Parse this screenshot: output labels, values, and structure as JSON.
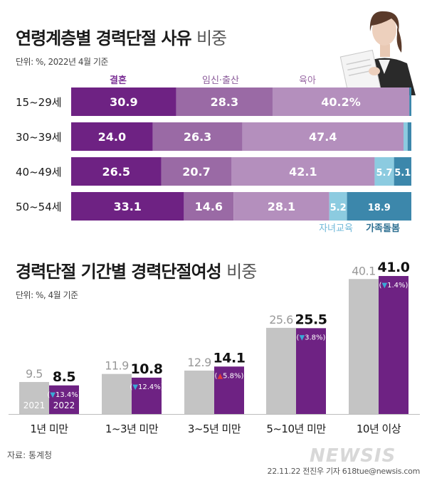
{
  "chart_data": [
    {
      "type": "bar",
      "orientation": "horizontal",
      "stacked": true,
      "percent": true,
      "title_main": "연령계층별 경력단절 사유",
      "title_light": "비중",
      "unit_note": "단위: %, 2022년 4월 기준",
      "categories": [
        "15~29세",
        "30~39세",
        "40~49세",
        "50~54세"
      ],
      "series": [
        {
          "name": "결혼",
          "color": "#6e2283",
          "values": [
            30.9,
            24.0,
            26.5,
            33.1
          ],
          "labels": [
            "30.9",
            "24.0",
            "26.5",
            "33.1"
          ]
        },
        {
          "name": "임신·출산",
          "color": "#9a6aa5",
          "values": [
            28.3,
            26.3,
            20.7,
            14.6
          ],
          "labels": [
            "28.3",
            "26.3",
            "20.7",
            "14.6"
          ]
        },
        {
          "name": "육아",
          "color": "#b48fbd",
          "values": [
            40.2,
            47.4,
            42.1,
            28.1
          ],
          "labels": [
            "40.2%",
            "47.4",
            "42.1",
            "28.1"
          ]
        },
        {
          "name": "자녀교육",
          "color": "#8ccbe0",
          "values": [
            0.0,
            1.2,
            5.7,
            5.2
          ],
          "labels": [
            "",
            "",
            "5.7",
            "5.2"
          ]
        },
        {
          "name": "가족돌봄",
          "color": "#3c87ab",
          "values": [
            0.6,
            1.1,
            5.1,
            18.9
          ],
          "labels": [
            "",
            "",
            "5.1",
            "18.9"
          ]
        }
      ],
      "legend_top": [
        0,
        1,
        2
      ],
      "legend_bottom": [
        3,
        4
      ],
      "legend_colors": [
        "#7b2f95",
        "#8a5a99",
        "#9a6aa5",
        "#6fb8d8",
        "#2d6f91"
      ]
    },
    {
      "type": "bar",
      "grouped": true,
      "title_main": "경력단절 기간별 경력단절여성",
      "title_light": "비중",
      "unit_note": "단위: %, 4월 기준",
      "categories": [
        "1년 미만",
        "1~3년 미만",
        "3~5년 미만",
        "5~10년 미만",
        "10년 이상"
      ],
      "series": [
        {
          "name": "2021",
          "color": "#c4c4c4",
          "values": [
            9.5,
            11.9,
            12.9,
            25.6,
            40.1
          ],
          "labels": [
            "9.5",
            "11.9",
            "12.9",
            "25.6",
            "40.1"
          ]
        },
        {
          "name": "2022",
          "color": "#6e2283",
          "values": [
            8.5,
            10.8,
            14.1,
            25.5,
            41.0
          ],
          "labels": [
            "8.5",
            "10.8",
            "14.1",
            "25.5",
            "41.0"
          ]
        }
      ],
      "changes": [
        {
          "arrow": "▼",
          "text": "13.4%",
          "dir": "down"
        },
        {
          "arrow": "▼",
          "text": "12.4%",
          "dir": "down"
        },
        {
          "arrow": "▲",
          "text": "5.8%",
          "dir": "up"
        },
        {
          "arrow": "▼",
          "text": "3.8%",
          "dir": "down"
        },
        {
          "arrow": "▼",
          "text": "1.4%",
          "dir": "down"
        }
      ],
      "paren_open": "(",
      "paren_close": ")",
      "colors": {
        "down": "#3aa9d6",
        "up": "#e23b3b"
      },
      "ylim": [
        0,
        45
      ]
    }
  ],
  "footer": {
    "source": "자료: 통계청",
    "credit": "22.11.22 전진우 기자 618tue@newsis.com",
    "watermark": "NEWSIS"
  }
}
